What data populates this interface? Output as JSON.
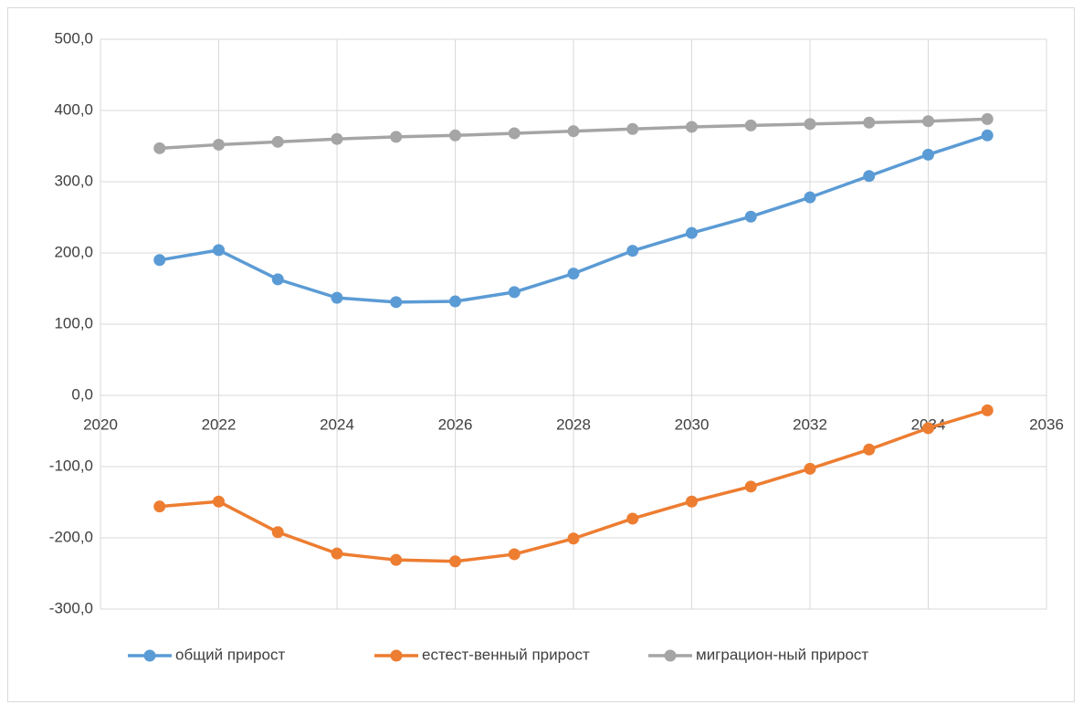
{
  "chart_data": {
    "type": "line",
    "x": [
      2021,
      2022,
      2023,
      2024,
      2025,
      2026,
      2027,
      2028,
      2029,
      2030,
      2031,
      2032,
      2033,
      2034,
      2035
    ],
    "series": [
      {
        "name": "общий прирост",
        "color": "#5b9bd5",
        "values": [
          190,
          204,
          163,
          137,
          131,
          132,
          145,
          171,
          203,
          228,
          251,
          278,
          308,
          338,
          365
        ]
      },
      {
        "name": "естест-венный прирост",
        "color": "#ed7d31",
        "values": [
          -156,
          -149,
          -192,
          -222,
          -231,
          -233,
          -223,
          -201,
          -173,
          -149,
          -128,
          -103,
          -76,
          -46,
          -21
        ]
      },
      {
        "name": "миграцион-ный прирост",
        "color": "#a5a5a5",
        "values": [
          347,
          352,
          356,
          360,
          363,
          365,
          368,
          371,
          374,
          377,
          379,
          381,
          383,
          385,
          388
        ]
      }
    ],
    "xlim": [
      2020,
      2036
    ],
    "xticks": [
      2020,
      2022,
      2024,
      2026,
      2028,
      2030,
      2032,
      2034,
      2036
    ],
    "ylim": [
      -300,
      500
    ],
    "yticks": [
      {
        "value": -300,
        "label": "-300,0"
      },
      {
        "value": -200,
        "label": "-200,0"
      },
      {
        "value": -100,
        "label": "-100,0"
      },
      {
        "value": 0,
        "label": "0,0"
      },
      {
        "value": 100,
        "label": "100,0"
      },
      {
        "value": 200,
        "label": "200,0"
      },
      {
        "value": 300,
        "label": "300,0"
      },
      {
        "value": 400,
        "label": "400,0"
      },
      {
        "value": 500,
        "label": "500,0"
      }
    ],
    "grid": true,
    "legend": "bottom"
  }
}
